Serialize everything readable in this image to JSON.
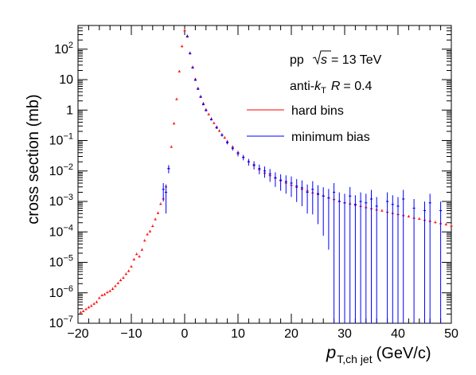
{
  "chart_data": {
    "type": "scatter",
    "title": "",
    "xlabel": {
      "main": "p",
      "sub": "T,ch jet",
      "unit": "(GeV/c)"
    },
    "ylabel": "cross section (mb)",
    "xlim": [
      -20,
      50
    ],
    "ylim": [
      1e-07,
      600
    ],
    "yscale": "log",
    "x_ticks": [
      -20,
      -10,
      0,
      10,
      20,
      30,
      40,
      50
    ],
    "y_ticks": [
      {
        "v": 1e-07,
        "base": "10",
        "exp": "−7"
      },
      {
        "v": 1e-06,
        "base": "10",
        "exp": "−6"
      },
      {
        "v": 1e-05,
        "base": "10",
        "exp": "−5"
      },
      {
        "v": 0.0001,
        "base": "10",
        "exp": "−4"
      },
      {
        "v": 0.001,
        "base": "10",
        "exp": "−3"
      },
      {
        "v": 0.01,
        "base": "10",
        "exp": "−2"
      },
      {
        "v": 0.1,
        "base": "10",
        "exp": "−1"
      },
      {
        "v": 1,
        "base": "1",
        "exp": ""
      },
      {
        "v": 10,
        "base": "10",
        "exp": ""
      },
      {
        "v": 100,
        "base": "10",
        "exp": "2"
      }
    ],
    "annotations": {
      "line1_a": "pp",
      "line1_s": "s",
      "line1_b": "= 13 TeV",
      "line2_a": "anti-",
      "line2_k": "k",
      "line2_sub": "T",
      "line2_r": "R",
      "line2_b": "= 0.4"
    },
    "legend_position": "top-right",
    "grid": false,
    "series": [
      {
        "name": "hard bins",
        "color": "#ff0000",
        "points": [
          [
            -19.5,
            2.2e-07,
            0
          ],
          [
            -19,
            2.4e-07,
            0
          ],
          [
            -18.5,
            2.8e-07,
            0
          ],
          [
            -18,
            3.2e-07,
            0
          ],
          [
            -17.5,
            3.6e-07,
            0
          ],
          [
            -17,
            4.2e-07,
            0
          ],
          [
            -16.5,
            4.8e-07,
            0
          ],
          [
            -16,
            6.5e-07,
            0
          ],
          [
            -15.5,
            8e-07,
            0
          ],
          [
            -15,
            8.5e-07,
            0
          ],
          [
            -14.5,
            1e-06,
            0
          ],
          [
            -14,
            1.1e-06,
            0
          ],
          [
            -13.5,
            1.3e-06,
            0
          ],
          [
            -13,
            1.6e-06,
            0
          ],
          [
            -12.5,
            2e-06,
            0
          ],
          [
            -12,
            2.5e-06,
            0
          ],
          [
            -11.5,
            3e-06,
            0
          ],
          [
            -11,
            4e-06,
            0
          ],
          [
            -10.5,
            5e-06,
            0
          ],
          [
            -10,
            7e-06,
            0
          ],
          [
            -9.5,
            1.2e-05,
            0
          ],
          [
            -9,
            1.8e-05,
            0
          ],
          [
            -8.5,
            1.5e-05,
            0
          ],
          [
            -8,
            2.5e-05,
            0
          ],
          [
            -7.5,
            5e-05,
            0
          ],
          [
            -7,
            8e-05,
            0
          ],
          [
            -6.5,
            0.0001,
            0
          ],
          [
            -6,
            0.00015,
            0
          ],
          [
            -5.5,
            0.00025,
            0
          ],
          [
            -5,
            0.0004,
            0
          ],
          [
            -4.5,
            0.0008,
            0
          ],
          [
            -4,
            0.0012,
            0
          ],
          [
            -3.5,
            0.003,
            0
          ],
          [
            -3,
            0.012,
            0
          ],
          [
            -2.5,
            0.06,
            0
          ],
          [
            -2,
            0.35,
            0
          ],
          [
            -1.5,
            2.2,
            0
          ],
          [
            -1,
            18,
            0
          ],
          [
            -0.5,
            120,
            0
          ],
          [
            0,
            400,
            0
          ],
          [
            0.5,
            250,
            0
          ],
          [
            1,
            70,
            0
          ],
          [
            1.5,
            25,
            0
          ],
          [
            2,
            10,
            0
          ],
          [
            2.5,
            5,
            0
          ],
          [
            3,
            2.6,
            0
          ],
          [
            3.5,
            1.6,
            0
          ],
          [
            4,
            1,
            0
          ],
          [
            4.5,
            0.7,
            0
          ],
          [
            5,
            0.5,
            0
          ],
          [
            5.5,
            0.36,
            0
          ],
          [
            6,
            0.27,
            0
          ],
          [
            6.5,
            0.2,
            0
          ],
          [
            7,
            0.15,
            0
          ],
          [
            7.5,
            0.12,
            0
          ],
          [
            8,
            0.09,
            0
          ],
          [
            9,
            0.06,
            0
          ],
          [
            10,
            0.04,
            0
          ],
          [
            11,
            0.028,
            0
          ],
          [
            12,
            0.02,
            0
          ],
          [
            13,
            0.015,
            0
          ],
          [
            14,
            0.011,
            0
          ],
          [
            15,
            0.0085,
            0
          ],
          [
            16,
            0.007,
            0
          ],
          [
            17,
            0.0058,
            0
          ],
          [
            18,
            0.0048,
            0
          ],
          [
            19,
            0.004,
            0
          ],
          [
            20,
            0.0034,
            0
          ],
          [
            21,
            0.0029,
            0
          ],
          [
            22,
            0.0025,
            0
          ],
          [
            23,
            0.0022,
            0
          ],
          [
            24,
            0.0019,
            0
          ],
          [
            25,
            0.0017,
            0
          ],
          [
            26,
            0.0015,
            0
          ],
          [
            27,
            0.0013,
            0
          ],
          [
            28,
            0.00115,
            0
          ],
          [
            29,
            0.001,
            0
          ],
          [
            30,
            0.0009,
            0
          ],
          [
            31,
            0.00082,
            0
          ],
          [
            32,
            0.00075,
            0
          ],
          [
            33,
            0.00068,
            0
          ],
          [
            34,
            0.00062,
            0
          ],
          [
            35,
            0.00057,
            0
          ],
          [
            36,
            0.00052,
            0
          ],
          [
            37,
            0.00048,
            0
          ],
          [
            38,
            0.00044,
            0
          ],
          [
            39,
            0.0004,
            0
          ],
          [
            40,
            0.00037,
            0
          ],
          [
            41,
            0.00034,
            0
          ],
          [
            42,
            0.00031,
            0
          ],
          [
            43,
            0.00028,
            0
          ],
          [
            44,
            0.00026,
            0
          ],
          [
            45,
            0.00024,
            0
          ],
          [
            46,
            0.00022,
            0
          ],
          [
            47,
            0.0002,
            0
          ],
          [
            48,
            0.000185,
            0
          ],
          [
            49,
            0.00017,
            0
          ],
          [
            50,
            0.000155,
            0
          ]
        ]
      },
      {
        "name": "minimum bias",
        "color": "#0000ff",
        "points": [
          [
            -4,
            0.0025,
            0.6
          ],
          [
            -3.5,
            0.002,
            0.8
          ],
          [
            -3,
            0.012,
            0.3
          ],
          [
            0.5,
            260,
            0
          ],
          [
            1,
            72,
            0
          ],
          [
            1.5,
            24,
            0
          ],
          [
            2,
            9.5,
            0
          ],
          [
            2.5,
            4.8,
            0
          ],
          [
            3,
            2.7,
            0
          ],
          [
            3.5,
            1.5,
            0
          ],
          [
            4,
            0.95,
            0
          ],
          [
            5,
            0.48,
            0.05
          ],
          [
            6,
            0.26,
            0.08
          ],
          [
            7,
            0.15,
            0.1
          ],
          [
            8,
            0.085,
            0.12
          ],
          [
            9,
            0.055,
            0.15
          ],
          [
            10,
            0.037,
            0.18
          ],
          [
            11,
            0.028,
            0.2
          ],
          [
            12,
            0.02,
            0.25
          ],
          [
            13,
            0.016,
            0.3
          ],
          [
            14,
            0.012,
            0.35
          ],
          [
            15,
            0.01,
            0.4
          ],
          [
            16,
            0.008,
            0.45
          ],
          [
            17,
            0.006,
            0.5
          ],
          [
            18,
            0.005,
            0.55
          ],
          [
            19,
            0.0045,
            0.6
          ],
          [
            20,
            0.004,
            0.65
          ],
          [
            21,
            0.0032,
            0.7
          ],
          [
            22,
            0.0028,
            0.75
          ],
          [
            23,
            0.002,
            0.8
          ],
          [
            24,
            0.0025,
            0.85
          ],
          [
            25,
            0.0018,
            0.9
          ],
          [
            26,
            0.0015,
            0.95
          ],
          [
            27,
            0.0013,
            0.98
          ],
          [
            28,
            0.002,
            0.99
          ],
          [
            29,
            0.001,
            0.99
          ],
          [
            30,
            0.0009,
            0.99
          ],
          [
            31,
            0.0015,
            0.99
          ],
          [
            32,
            0.0008,
            0.99
          ],
          [
            33,
            0.001,
            0.99
          ],
          [
            34,
            0.0009,
            0.99
          ],
          [
            35,
            0.0012,
            0.99
          ],
          [
            36,
            0.0007,
            0.99
          ],
          [
            38,
            0.001,
            0.99
          ],
          [
            39,
            0.0008,
            0.99
          ],
          [
            40,
            0.0007,
            0.99
          ],
          [
            41,
            0.0012,
            0.99
          ],
          [
            43,
            0.0006,
            0.99
          ],
          [
            45,
            0.0005,
            0.99
          ],
          [
            46,
            0.0009,
            0.99
          ],
          [
            48,
            0.0005,
            0.99
          ]
        ]
      }
    ]
  }
}
